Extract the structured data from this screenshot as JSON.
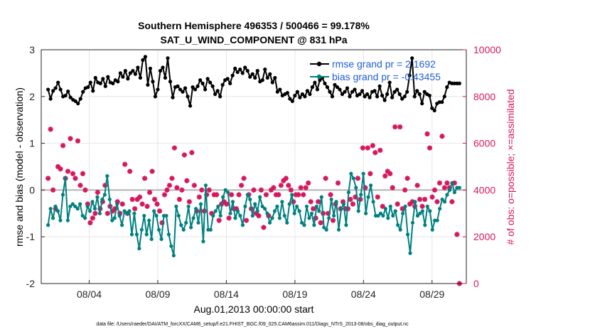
{
  "chart_data": {
    "type": "line",
    "title": "Southern Hemisphere 496353 / 500466 = 99.178%",
    "subtitle": "SAT_U_WIND_COMPONENT @ 831 hPa",
    "xlabel": "Aug.01,2013 00:00:00 start",
    "ylabel_left": "rmse and bias (model - observation)",
    "ylabel_right": "# of obs: o=possible; ×=assimilated",
    "footnote": "data file: /Users/raeder/DAI/ATM_forcXX/CAM6_setup/f.e21.FHIST_BGC.f09_025.CAM6assim.011/Diags_NTrS_2013-08/obs_diag_output.nc",
    "x_ticks": [
      {
        "day": 3.5,
        "label": "08/04"
      },
      {
        "day": 8.5,
        "label": "08/09"
      },
      {
        "day": 13.5,
        "label": "08/14"
      },
      {
        "day": 18.5,
        "label": "08/19"
      },
      {
        "day": 23.5,
        "label": "08/24"
      },
      {
        "day": 28.5,
        "label": "08/29"
      }
    ],
    "xlim": [
      0,
      31
    ],
    "ylim_left": [
      -2,
      3
    ],
    "ylim_right": [
      0,
      10000
    ],
    "yticks_left": [
      "-2",
      "-1",
      "0",
      "1",
      "2",
      "3"
    ],
    "yticks_right": [
      "0",
      "2000",
      "4000",
      "6000",
      "8000",
      "10000"
    ],
    "grid": true,
    "legend_position": "top-right",
    "colors": {
      "rmse": "#000000",
      "bias": "#008080",
      "obs": "#d6175d",
      "zero": "#b3b3b3",
      "legend_text": "#1f5fd6"
    },
    "series": [
      {
        "name": "rmse grand pr = 2.1692",
        "axis": "left",
        "color": "#000000",
        "marker": "circle",
        "values": [
          2.15,
          1.95,
          2.12,
          2.18,
          2.3,
          2.15,
          2.0,
          2.02,
          2.11,
          1.98,
          1.93,
          1.9,
          1.85,
          1.95,
          2.1,
          2.18,
          2.2,
          2.3,
          2.12,
          2.4,
          2.3,
          2.28,
          2.38,
          2.22,
          2.42,
          2.3,
          2.28,
          2.35,
          2.32,
          2.5,
          2.42,
          2.55,
          2.38,
          2.5,
          2.55,
          2.48,
          2.62,
          2.4,
          2.78,
          2.85,
          2.25,
          2.6,
          2.32,
          2.0,
          2.15,
          2.55,
          2.62,
          2.4,
          2.82,
          2.32,
          1.98,
          2.2,
          2.22,
          2.15,
          2.1,
          2.18,
          2.0,
          1.8,
          2.2,
          2.15,
          2.22,
          2.35,
          2.28,
          2.15,
          2.38,
          2.3,
          2.22,
          2.05,
          2.12,
          2.0,
          2.25,
          2.35,
          2.38,
          2.28,
          2.45,
          2.6,
          2.52,
          2.58,
          2.5,
          2.62,
          2.55,
          2.42,
          2.48,
          2.4,
          2.55,
          2.32,
          2.35,
          2.58,
          2.4,
          2.48,
          2.3,
          2.4,
          2.1,
          2.15,
          2.02,
          2.05,
          2.08,
          1.95,
          1.9,
          2.02,
          2.1,
          1.98,
          2.05,
          2.0,
          2.12,
          2.05,
          2.2,
          2.3,
          2.15,
          2.35,
          2.4,
          2.28,
          2.2,
          2.1,
          2.0,
          2.25,
          2.2,
          2.15,
          2.05,
          2.1,
          2.18,
          2.0,
          2.1,
          2.15,
          2.02,
          2.05,
          2.12,
          2.0,
          2.05,
          1.98,
          2.1,
          2.12,
          2.0,
          2.22,
          2.02,
          1.92,
          2.05,
          2.3,
          1.98,
          2.1,
          2.15,
          2.05,
          1.95,
          2.0,
          2.1,
          2.45,
          2.82,
          2.0,
          2.12,
          2.05,
          1.85,
          2.1,
          2.05,
          2.02,
          1.75,
          1.7,
          1.85,
          1.88,
          1.88,
          2.0,
          2.2,
          2.3,
          2.28,
          2.28,
          2.28,
          2.28
        ]
      },
      {
        "name": "bias grand pr = -0.43455",
        "axis": "left",
        "color": "#008080",
        "marker": "circle",
        "values": [
          -0.75,
          -0.4,
          -0.6,
          -0.35,
          -0.45,
          -0.65,
          -0.1,
          0.25,
          -0.65,
          -0.35,
          -0.3,
          -0.35,
          -0.4,
          -0.3,
          -0.55,
          -0.6,
          -0.35,
          -0.45,
          -0.25,
          -0.4,
          -0.15,
          -0.5,
          -0.2,
          -0.1,
          0.3,
          -0.2,
          -0.65,
          -0.6,
          -0.3,
          -0.55,
          -0.75,
          -0.45,
          -0.5,
          -0.45,
          -0.95,
          -0.5,
          -0.95,
          -1.25,
          -0.85,
          -0.55,
          -0.95,
          -0.65,
          -1.05,
          -0.45,
          -0.55,
          -0.85,
          -1.05,
          -0.55,
          -0.55,
          -0.95,
          -1.2,
          -1.4,
          -0.35,
          -0.55,
          -0.75,
          -0.85,
          -0.7,
          -0.35,
          -0.8,
          -0.6,
          -0.4,
          -0.7,
          -0.3,
          -1.1,
          0.1,
          -0.85,
          -0.85,
          -0.55,
          -0.45,
          -0.35,
          -0.55,
          -0.15,
          0.0,
          -0.05,
          -0.5,
          -0.25,
          -0.6,
          -0.45,
          -0.55,
          -0.75,
          -0.35,
          -0.1,
          -0.2,
          -0.55,
          -0.3,
          -0.45,
          -0.15,
          -0.35,
          -0.4,
          -0.5,
          -0.7,
          -0.6,
          -0.45,
          -0.35,
          -0.6,
          -0.25,
          -0.55,
          -0.7,
          -0.3,
          -0.1,
          -0.5,
          -0.35,
          -0.45,
          -0.7,
          -0.75,
          -0.35,
          -0.6,
          -0.5,
          -0.75,
          -0.35,
          -0.45,
          -0.15,
          -0.8,
          -0.85,
          -0.6,
          -0.2,
          -0.55,
          -0.25,
          -0.85,
          -0.4,
          -0.3,
          -0.75,
          -0.05,
          0.35,
          0.25,
          0.05,
          -0.45,
          -0.1,
          0.35,
          -0.5,
          -0.15,
          0.1,
          -0.25,
          -0.55,
          -0.55,
          -0.5,
          -0.55,
          -0.4,
          -0.6,
          -0.35,
          -0.55,
          -0.45,
          -0.75,
          -0.85,
          -0.5,
          -0.35,
          -0.95,
          -1.35,
          -0.7,
          -0.25,
          -0.55,
          -0.5,
          -0.45,
          -0.75,
          -0.35,
          -0.45,
          -0.85,
          -0.65,
          -0.65,
          -0.4,
          -0.2,
          -0.25,
          -0.1,
          0.0,
          0.15,
          -0.05,
          0.05,
          0.05
        ]
      },
      {
        "name": "obs",
        "axis": "right",
        "color": "#d6175d",
        "marker": "star",
        "values": [
          4500,
          6600,
          4000,
          3200,
          5000,
          4900,
          5900,
          4500,
          4800,
          6200,
          4700,
          4500,
          6100,
          4200,
          4700,
          4000,
          3400,
          2600,
          2800,
          3000,
          3900,
          3200,
          3500,
          4200,
          3000,
          3300,
          3100,
          3200,
          3500,
          3000,
          3400,
          5100,
          3000,
          4800,
          3600,
          3200,
          3600,
          3700,
          3400,
          4500,
          3300,
          3900,
          4800,
          3600,
          3400,
          3100,
          2600,
          3800,
          4000,
          4200,
          4500,
          5800,
          4100,
          3600,
          4000,
          5500,
          4400,
          3500,
          5600,
          4200,
          3100,
          3700,
          4000,
          3100,
          3800,
          4000,
          3000,
          3800,
          3800,
          2700,
          3400,
          3500,
          3400,
          2800,
          3800,
          3200,
          3200,
          3800,
          4200,
          4500,
          2700,
          3800,
          3200,
          4000,
          3000,
          2900,
          4000,
          2400,
          3800,
          2900,
          4000,
          4100,
          3800,
          3800,
          4200,
          4400,
          4500,
          4200,
          4000,
          3500,
          3800,
          3800,
          4100,
          3800,
          4100,
          4300,
          3500,
          3200,
          2800,
          3500,
          2600,
          3000,
          4500,
          3000,
          3800,
          2700,
          3400,
          4300,
          3200,
          3500,
          3200,
          3200,
          3600,
          3400,
          3700,
          4500,
          3600,
          5800,
          4100,
          5800,
          4700,
          5900,
          5600,
          3700,
          5700,
          3300,
          4600,
          4800,
          4700,
          4100,
          6700,
          3400,
          6700,
          3200,
          4000,
          4500,
          3400,
          3500,
          3300,
          4200,
          3600,
          3300,
          3600,
          6400,
          5800,
          3700,
          4000,
          3500,
          4300,
          6300,
          4100,
          4300,
          4100,
          3500,
          4300,
          2100,
          0
        ]
      }
    ]
  }
}
